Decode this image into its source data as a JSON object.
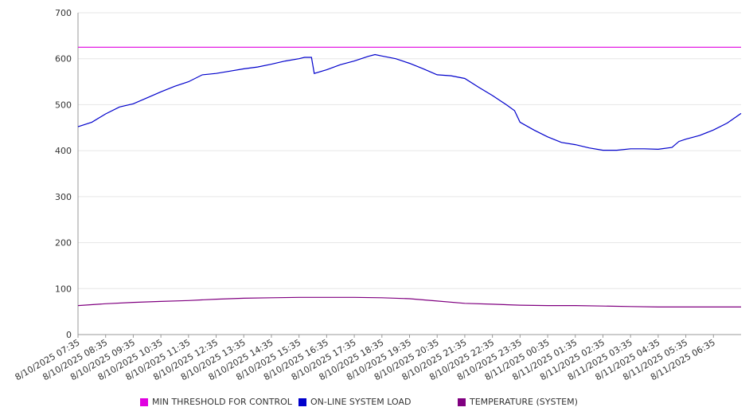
{
  "chart_data": {
    "type": "line",
    "y_ticks": [
      0,
      100,
      200,
      300,
      400,
      500,
      600,
      700
    ],
    "ylim": [
      0,
      700
    ],
    "x_tick_labels": [
      "8/10/2025 07:35",
      "8/10/2025 08:35",
      "8/10/2025 09:35",
      "8/10/2025 10:35",
      "8/10/2025 11:35",
      "8/10/2025 12:35",
      "8/10/2025 13:35",
      "8/10/2025 14:35",
      "8/10/2025 15:35",
      "8/10/2025 16:35",
      "8/10/2025 17:35",
      "8/10/2025 18:35",
      "8/10/2025 19:35",
      "8/10/2025 20:35",
      "8/10/2025 21:35",
      "8/10/2025 22:35",
      "8/10/2025 23:35",
      "8/11/2025 00:35",
      "8/11/2025 01:35",
      "8/11/2025 02:35",
      "8/11/2025 03:35",
      "8/11/2025 04:35",
      "8/11/2025 05:35",
      "8/11/2025 06:35"
    ],
    "x_range_hours": [
      0,
      24
    ],
    "grid": true,
    "legend_position": "bottom",
    "series": [
      {
        "name": "MIN THRESHOLD FOR CONTROL",
        "color": "#e000e0",
        "points": [
          [
            0,
            625
          ],
          [
            24,
            625
          ]
        ]
      },
      {
        "name": "ON-LINE SYSTEM LOAD",
        "color": "#0000cc",
        "points": [
          [
            0,
            452
          ],
          [
            0.5,
            462
          ],
          [
            1,
            480
          ],
          [
            1.5,
            495
          ],
          [
            2,
            502
          ],
          [
            2.5,
            515
          ],
          [
            3,
            528
          ],
          [
            3.5,
            540
          ],
          [
            4,
            550
          ],
          [
            4.5,
            565
          ],
          [
            5,
            568
          ],
          [
            5.5,
            573
          ],
          [
            6,
            578
          ],
          [
            6.5,
            582
          ],
          [
            7,
            588
          ],
          [
            7.5,
            595
          ],
          [
            8,
            600
          ],
          [
            8.2,
            603
          ],
          [
            8.45,
            603
          ],
          [
            8.55,
            568
          ],
          [
            9,
            576
          ],
          [
            9.5,
            587
          ],
          [
            10,
            595
          ],
          [
            10.5,
            605
          ],
          [
            10.75,
            609
          ],
          [
            11,
            606
          ],
          [
            11.5,
            600
          ],
          [
            12,
            590
          ],
          [
            12.5,
            578
          ],
          [
            13,
            565
          ],
          [
            13.5,
            563
          ],
          [
            14,
            557
          ],
          [
            14.5,
            538
          ],
          [
            15,
            520
          ],
          [
            15.5,
            500
          ],
          [
            15.8,
            487
          ],
          [
            16,
            462
          ],
          [
            16.5,
            445
          ],
          [
            17,
            430
          ],
          [
            17.5,
            418
          ],
          [
            18,
            413
          ],
          [
            18.5,
            406
          ],
          [
            19,
            401
          ],
          [
            19.5,
            401
          ],
          [
            20,
            404
          ],
          [
            20.5,
            404
          ],
          [
            21,
            403
          ],
          [
            21.5,
            407
          ],
          [
            21.75,
            420
          ],
          [
            22,
            425
          ],
          [
            22.5,
            433
          ],
          [
            23,
            445
          ],
          [
            23.5,
            460
          ],
          [
            24,
            481
          ]
        ]
      },
      {
        "name": "TEMPERATURE (SYSTEM)",
        "color": "#800080",
        "points": [
          [
            0,
            63
          ],
          [
            1,
            67
          ],
          [
            2,
            70
          ],
          [
            3,
            72
          ],
          [
            4,
            74
          ],
          [
            5,
            77
          ],
          [
            6,
            79
          ],
          [
            7,
            80
          ],
          [
            8,
            81
          ],
          [
            10,
            81
          ],
          [
            11,
            80
          ],
          [
            12,
            78
          ],
          [
            13,
            73
          ],
          [
            14,
            68
          ],
          [
            15,
            66
          ],
          [
            16,
            64
          ],
          [
            17,
            63
          ],
          [
            18,
            63
          ],
          [
            19,
            62
          ],
          [
            20,
            61
          ],
          [
            21,
            60
          ],
          [
            22,
            60
          ],
          [
            23,
            60
          ],
          [
            24,
            60
          ]
        ]
      }
    ]
  }
}
